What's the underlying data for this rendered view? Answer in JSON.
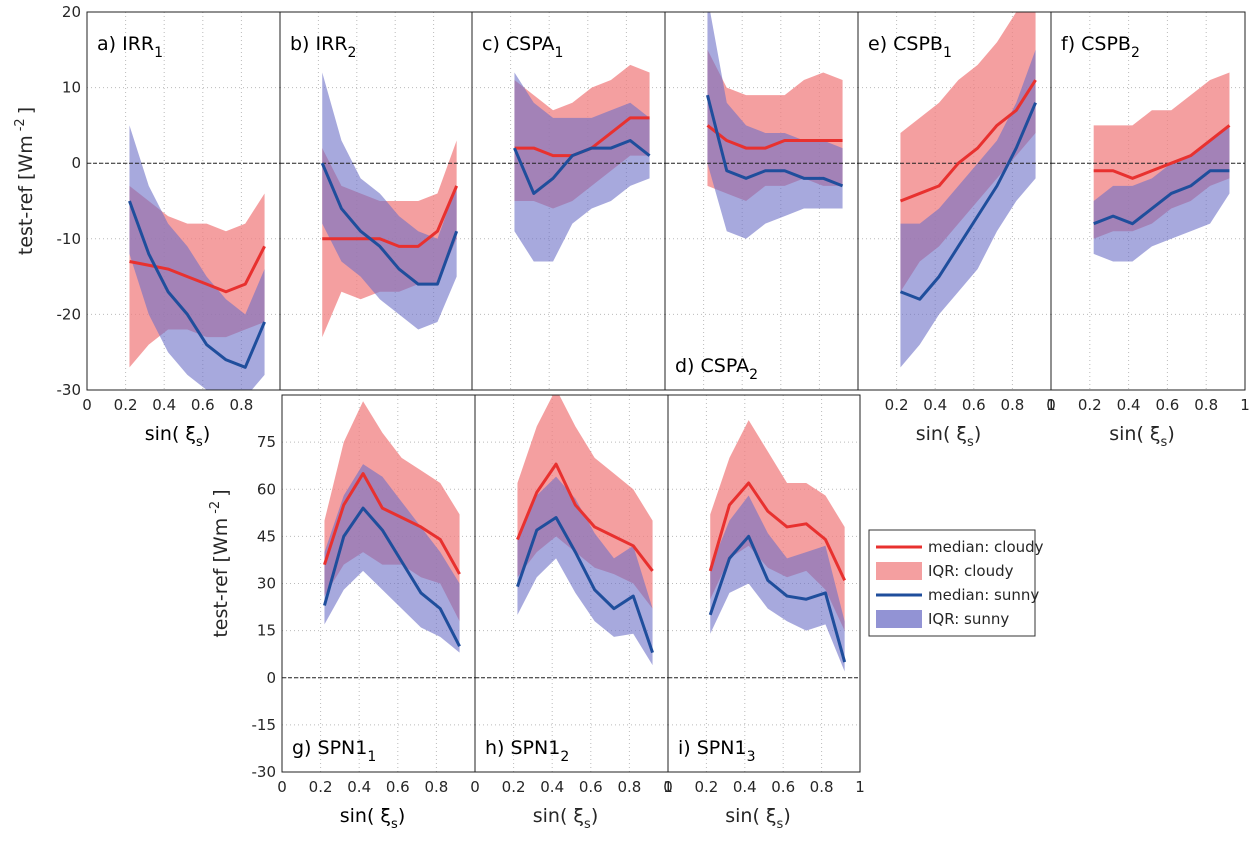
{
  "chart_data": [
    {
      "type": "line",
      "title": {
        "text": "a) IRR",
        "sub": "1"
      },
      "x": [
        0.22,
        0.32,
        0.42,
        0.52,
        0.62,
        0.72,
        0.82,
        0.92
      ],
      "xlim": [
        0,
        1
      ],
      "ylim": [
        -30,
        20
      ],
      "xticks": [
        0,
        0.2,
        0.4,
        0.6,
        0.8,
        1
      ],
      "yticks": [
        -30,
        -20,
        -10,
        0,
        10,
        20
      ],
      "xtick_labels": [
        0,
        0.2,
        0.4,
        0.6,
        0.8
      ],
      "ytick_labels": [
        -30,
        -20,
        -10,
        0,
        10,
        20
      ],
      "xlabel": {
        "text": "sin( ξ",
        "sub": "s",
        "end": ")"
      },
      "ylabel": {
        "text": "test-ref [Wm",
        "sup": "-2",
        "end": "]"
      },
      "cloudy": {
        "median": [
          -13,
          -13.5,
          -14,
          -15,
          -16,
          -17,
          -16,
          -11
        ],
        "iqr_low": [
          -27,
          -24,
          -22,
          -22,
          -23,
          -23,
          -22,
          -21
        ],
        "iqr_high": [
          -3,
          -5,
          -7,
          -8,
          -8,
          -9,
          -8,
          -4
        ]
      },
      "sunny": {
        "median": [
          -5,
          -12,
          -17,
          -20,
          -24,
          -26,
          -27,
          -21
        ],
        "iqr_low": [
          -12,
          -20,
          -25,
          -28,
          -30,
          -31,
          -31,
          -28
        ],
        "iqr_high": [
          5,
          -3,
          -8,
          -11,
          -15,
          -18,
          -20,
          -14
        ]
      }
    },
    {
      "type": "line",
      "title": {
        "text": "b) IRR",
        "sub": "2"
      },
      "x": [
        0.22,
        0.32,
        0.42,
        0.52,
        0.62,
        0.72,
        0.82,
        0.92
      ],
      "xlim": [
        0,
        1
      ],
      "ylim": [
        -30,
        20
      ],
      "xticks": [
        0,
        0.2,
        0.4,
        0.6,
        0.8,
        1
      ],
      "yticks": [
        -30,
        -20,
        -10,
        0,
        10,
        20
      ],
      "cloudy": {
        "median": [
          -10,
          -10,
          -10,
          -10,
          -11,
          -11,
          -9,
          -3
        ],
        "iqr_low": [
          -23,
          -17,
          -18,
          -17,
          -17,
          -16,
          -16,
          -10
        ],
        "iqr_high": [
          2,
          -3,
          -4,
          -5,
          -5,
          -5,
          -4,
          3
        ]
      },
      "sunny": {
        "median": [
          0,
          -6,
          -9,
          -11,
          -14,
          -16,
          -16,
          -9
        ],
        "iqr_low": [
          -8,
          -13,
          -15,
          -18,
          -20,
          -22,
          -21,
          -15
        ],
        "iqr_high": [
          12,
          3,
          -2,
          -4,
          -7,
          -9,
          -10,
          -3
        ]
      }
    },
    {
      "type": "line",
      "title": {
        "text": "c) CSPA",
        "sub": "1"
      },
      "x": [
        0.22,
        0.32,
        0.42,
        0.52,
        0.62,
        0.72,
        0.82,
        0.92
      ],
      "xlim": [
        0,
        1
      ],
      "ylim": [
        -30,
        20
      ],
      "xticks": [
        0,
        0.2,
        0.4,
        0.6,
        0.8,
        1
      ],
      "yticks": [
        -30,
        -20,
        -10,
        0,
        10,
        20
      ],
      "cloudy": {
        "median": [
          2,
          2,
          1,
          1,
          2,
          4,
          6,
          6
        ],
        "iqr_low": [
          -5,
          -5,
          -6,
          -5,
          -3,
          -1,
          1,
          1
        ],
        "iqr_high": [
          11,
          9,
          7,
          8,
          10,
          11,
          13,
          12
        ]
      },
      "sunny": {
        "median": [
          2,
          -4,
          -2,
          1,
          2,
          2,
          3,
          1
        ],
        "iqr_low": [
          -9,
          -13,
          -13,
          -8,
          -6,
          -5,
          -3,
          -2
        ],
        "iqr_high": [
          12,
          8,
          6,
          6,
          6,
          7,
          8,
          6
        ]
      }
    },
    {
      "type": "line",
      "title": {
        "text": "d) CSPA",
        "sub": "2"
      },
      "x": [
        0.22,
        0.32,
        0.42,
        0.52,
        0.62,
        0.72,
        0.82,
        0.92
      ],
      "xlim": [
        0,
        1
      ],
      "ylim": [
        -30,
        20
      ],
      "xticks": [
        0,
        0.2,
        0.4,
        0.6,
        0.8,
        1
      ],
      "yticks": [
        -30,
        -20,
        -10,
        0,
        10,
        20
      ],
      "cloudy": {
        "median": [
          5,
          3,
          2,
          2,
          3,
          3,
          3,
          3
        ],
        "iqr_low": [
          -3,
          -4,
          -5,
          -3,
          -3,
          -2,
          -3,
          -3
        ],
        "iqr_high": [
          15,
          10,
          9,
          9,
          9,
          11,
          12,
          11
        ]
      },
      "sunny": {
        "median": [
          9,
          -1,
          -2,
          -1,
          -1,
          -2,
          -2,
          -3
        ],
        "iqr_low": [
          0,
          -9,
          -10,
          -8,
          -7,
          -6,
          -6,
          -6
        ],
        "iqr_high": [
          22,
          8,
          5,
          4,
          4,
          3,
          3,
          2
        ]
      }
    },
    {
      "type": "line",
      "title": {
        "text": "e) CSPB",
        "sub": "1"
      },
      "x": [
        0.22,
        0.32,
        0.42,
        0.52,
        0.62,
        0.72,
        0.82,
        0.92
      ],
      "xlim": [
        0,
        1
      ],
      "ylim": [
        -30,
        20
      ],
      "xticks": [
        0,
        0.2,
        0.4,
        0.6,
        0.8,
        1
      ],
      "yticks": [
        -30,
        -20,
        -10,
        0,
        10,
        20
      ],
      "xtick_labels": [
        0.2,
        0.4,
        0.6,
        0.8,
        1
      ],
      "xlabel": {
        "text": "sin( ξ",
        "sub": "s",
        "end": ")"
      },
      "cloudy": {
        "median": [
          -5,
          -4,
          -3,
          0,
          2,
          5,
          7,
          11
        ],
        "iqr_low": [
          -17,
          -13,
          -11,
          -8,
          -5,
          -2,
          1,
          4
        ],
        "iqr_high": [
          4,
          6,
          8,
          11,
          13,
          16,
          20,
          21
        ]
      },
      "sunny": {
        "median": [
          -17,
          -18,
          -15,
          -11,
          -7,
          -3,
          2,
          8
        ],
        "iqr_low": [
          -27,
          -24,
          -20,
          -17,
          -14,
          -9,
          -5,
          -2
        ],
        "iqr_high": [
          -8,
          -8,
          -6,
          -3,
          0,
          3,
          8,
          15
        ]
      }
    },
    {
      "type": "line",
      "title": {
        "text": "f) CSPB",
        "sub": "2"
      },
      "x": [
        0.22,
        0.32,
        0.42,
        0.52,
        0.62,
        0.72,
        0.82,
        0.92
      ],
      "xlim": [
        0,
        1
      ],
      "ylim": [
        -30,
        20
      ],
      "xticks": [
        0,
        0.2,
        0.4,
        0.6,
        0.8,
        1
      ],
      "yticks": [
        -30,
        -20,
        -10,
        0,
        10,
        20
      ],
      "xtick_labels": [
        0,
        0.2,
        0.4,
        0.6,
        0.8,
        1
      ],
      "xlabel": {
        "text": "sin( ξ",
        "sub": "s",
        "end": ")"
      },
      "cloudy": {
        "median": [
          -1,
          -1,
          -2,
          -1,
          0,
          1,
          3,
          5
        ],
        "iqr_low": [
          -10,
          -9,
          -9,
          -8,
          -6,
          -5,
          -3,
          -2
        ],
        "iqr_high": [
          5,
          5,
          5,
          7,
          7,
          9,
          11,
          12
        ]
      },
      "sunny": {
        "median": [
          -8,
          -7,
          -8,
          -6,
          -4,
          -3,
          -1,
          -1
        ],
        "iqr_low": [
          -12,
          -13,
          -13,
          -11,
          -10,
          -9,
          -8,
          -4
        ],
        "iqr_high": [
          -5,
          -3,
          -3,
          -2,
          0,
          1,
          3,
          5
        ]
      }
    },
    {
      "type": "line",
      "title": {
        "text": "g) SPN1",
        "sub": "1"
      },
      "x": [
        0.22,
        0.32,
        0.42,
        0.52,
        0.62,
        0.72,
        0.82,
        0.92
      ],
      "xlim": [
        0,
        1
      ],
      "ylim": [
        -30,
        90
      ],
      "xticks": [
        0,
        0.2,
        0.4,
        0.6,
        0.8,
        1
      ],
      "yticks": [
        -30,
        -15,
        0,
        15,
        30,
        45,
        60,
        75
      ],
      "xtick_labels": [
        0,
        0.2,
        0.4,
        0.6,
        0.8
      ],
      "ytick_labels": [
        -30,
        -15,
        0,
        15,
        30,
        45,
        60,
        75
      ],
      "xlabel": {
        "text": "sin( ξ",
        "sub": "s",
        "end": ")"
      },
      "ylabel": {
        "text": "test-ref [Wm",
        "sup": "-2",
        "end": "]"
      },
      "cloudy": {
        "median": [
          36,
          55,
          65,
          54,
          51,
          48,
          44,
          33
        ],
        "iqr_low": [
          26,
          36,
          40,
          36,
          36,
          32,
          30,
          18
        ],
        "iqr_high": [
          50,
          75,
          88,
          78,
          70,
          66,
          62,
          52
        ]
      },
      "sunny": {
        "median": [
          23,
          45,
          54,
          47,
          37,
          27,
          22,
          10
        ],
        "iqr_low": [
          17,
          28,
          34,
          28,
          22,
          16,
          13,
          8
        ],
        "iqr_high": [
          40,
          58,
          68,
          64,
          56,
          48,
          40,
          30
        ]
      }
    },
    {
      "type": "line",
      "title": {
        "text": "h) SPN1",
        "sub": "2"
      },
      "x": [
        0.22,
        0.32,
        0.42,
        0.52,
        0.62,
        0.72,
        0.82,
        0.92
      ],
      "xlim": [
        0,
        1
      ],
      "ylim": [
        -30,
        90
      ],
      "xticks": [
        0,
        0.2,
        0.4,
        0.6,
        0.8,
        1
      ],
      "yticks": [
        -30,
        -15,
        0,
        15,
        30,
        45,
        60,
        75
      ],
      "xtick_labels": [
        0,
        0.2,
        0.4,
        0.6,
        0.8,
        1
      ],
      "xlabel": {
        "text": "sin( ξ",
        "sub": "s",
        "end": ")"
      },
      "cloudy": {
        "median": [
          44,
          59,
          68,
          55,
          48,
          45,
          42,
          34
        ],
        "iqr_low": [
          32,
          40,
          45,
          40,
          35,
          33,
          30,
          22
        ],
        "iqr_high": [
          62,
          80,
          92,
          80,
          70,
          65,
          60,
          50
        ]
      },
      "sunny": {
        "median": [
          29,
          47,
          51,
          40,
          28,
          22,
          26,
          8
        ],
        "iqr_low": [
          20,
          32,
          38,
          27,
          18,
          13,
          14,
          4
        ],
        "iqr_high": [
          44,
          58,
          64,
          57,
          46,
          38,
          42,
          22
        ]
      }
    },
    {
      "type": "line",
      "title": {
        "text": "i) SPN1",
        "sub": "3"
      },
      "x": [
        0.22,
        0.32,
        0.42,
        0.52,
        0.62,
        0.72,
        0.82,
        0.92
      ],
      "xlim": [
        0,
        1
      ],
      "ylim": [
        -30,
        90
      ],
      "xticks": [
        0,
        0.2,
        0.4,
        0.6,
        0.8,
        1
      ],
      "yticks": [
        -30,
        -15,
        0,
        15,
        30,
        45,
        60,
        75
      ],
      "xtick_labels": [
        0,
        0.2,
        0.4,
        0.6,
        0.8,
        1
      ],
      "xlabel": {
        "text": "sin( ξ",
        "sub": "s",
        "end": ")"
      },
      "cloudy": {
        "median": [
          34,
          55,
          62,
          53,
          48,
          49,
          44,
          31
        ],
        "iqr_low": [
          25,
          38,
          42,
          35,
          32,
          34,
          28,
          15
        ],
        "iqr_high": [
          52,
          70,
          82,
          72,
          62,
          62,
          58,
          48
        ]
      },
      "sunny": {
        "median": [
          20,
          38,
          45,
          31,
          26,
          25,
          27,
          5
        ],
        "iqr_low": [
          14,
          27,
          30,
          22,
          18,
          15,
          17,
          2
        ],
        "iqr_high": [
          35,
          50,
          58,
          46,
          38,
          40,
          42,
          18
        ]
      }
    }
  ],
  "legend": [
    {
      "name": "median: cloudy",
      "color": "#e8312f",
      "group": "cloudy",
      "kind": "median"
    },
    {
      "name": "IQR: cloudy",
      "color": "#f07f80",
      "group": "cloudy",
      "kind": "iqr"
    },
    {
      "name": "median: sunny",
      "color": "#1f4e9c",
      "group": "sunny",
      "kind": "median"
    },
    {
      "name": "IQR: sunny",
      "color": "#6d6fc6",
      "group": "sunny",
      "kind": "iqr"
    }
  ]
}
